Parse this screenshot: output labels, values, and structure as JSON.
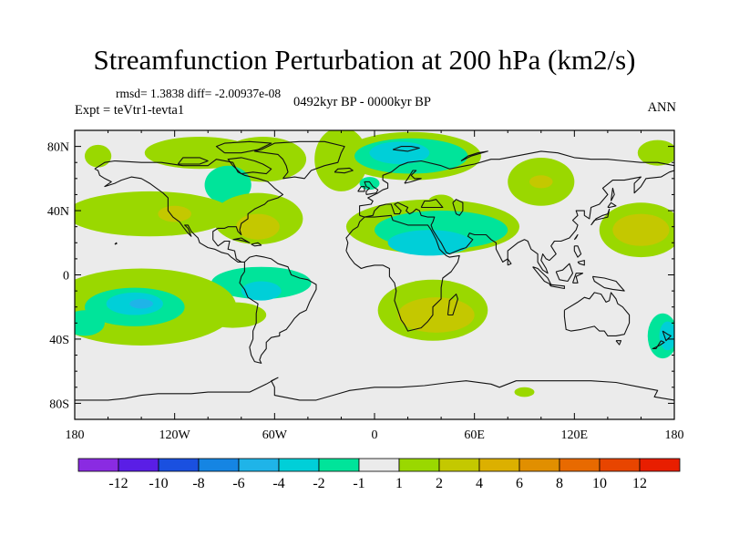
{
  "title": "Streamfunction Perturbation at 200 hPa (km2/s)",
  "stats": {
    "rmsd_text": "rmsd= 1.3838 diff= -2.00937e-08"
  },
  "experiment": "Expt = teVtr1-tevta1",
  "period": "0492kyr BP - 0000kyr BP",
  "season": "ANN",
  "map": {
    "projection": "cylindrical-equidistant",
    "lon_range": [
      -180,
      180
    ],
    "lat_range": [
      -90,
      90
    ],
    "lat_ticks": [
      {
        "value": 80,
        "label": "80N"
      },
      {
        "value": 40,
        "label": "40N"
      },
      {
        "value": 0,
        "label": "0"
      },
      {
        "value": -40,
        "label": "40S"
      },
      {
        "value": -80,
        "label": "80S"
      }
    ],
    "lon_ticks": [
      {
        "value": -180,
        "label": "180"
      },
      {
        "value": -120,
        "label": "120W"
      },
      {
        "value": -60,
        "label": "60W"
      },
      {
        "value": 0,
        "label": "0"
      },
      {
        "value": 60,
        "label": "60E"
      },
      {
        "value": 120,
        "label": "120E"
      },
      {
        "value": 180,
        "label": "180"
      }
    ],
    "background_color": "#ebebeb",
    "level_colors": {
      "neg1": "#00e49a",
      "neg2": "#00cfd8",
      "neg3": "#1fb4e8",
      "pos1": "#9ad800",
      "pos2": "#c4c800",
      "pos3": "#dcb000"
    },
    "anomaly_regions": [
      {
        "lon": -166,
        "lat": 74,
        "rlon": 8,
        "rlat": 7,
        "sign": 1,
        "level": 1
      },
      {
        "lon": -105,
        "lat": 76,
        "rlon": 33,
        "rlat": 10,
        "sign": 1,
        "level": 1
      },
      {
        "lon": -67,
        "lat": 72,
        "rlon": 26,
        "rlat": 14,
        "sign": 1,
        "level": 1
      },
      {
        "lon": -88,
        "lat": 56,
        "rlon": 14,
        "rlat": 12,
        "sign": -1,
        "level": 1
      },
      {
        "lon": -135,
        "lat": 38,
        "rlon": 50,
        "rlat": 14,
        "sign": 1,
        "level": 1
      },
      {
        "lon": -70,
        "lat": 35,
        "rlon": 27,
        "rlat": 16,
        "sign": 1,
        "level": 1
      },
      {
        "lon": -120,
        "lat": 38,
        "rlon": 10,
        "rlat": 5,
        "sign": 1,
        "level": 2
      },
      {
        "lon": -70,
        "lat": 30,
        "rlon": 13,
        "rlat": 8,
        "sign": 1,
        "level": 2
      },
      {
        "lon": -68,
        "lat": -5,
        "rlon": 30,
        "rlat": 10,
        "sign": -1,
        "level": 1
      },
      {
        "lon": -68,
        "lat": -10,
        "rlon": 12,
        "rlat": 6,
        "sign": -1,
        "level": 2
      },
      {
        "lon": -85,
        "lat": -25,
        "rlon": 20,
        "rlat": 8,
        "sign": 1,
        "level": 1
      },
      {
        "lon": -140,
        "lat": -20,
        "rlon": 57,
        "rlat": 24,
        "sign": 1,
        "level": 1
      },
      {
        "lon": -144,
        "lat": -20,
        "rlon": 30,
        "rlat": 12,
        "sign": -1,
        "level": 1
      },
      {
        "lon": -144,
        "lat": -18,
        "rlon": 17,
        "rlat": 7,
        "sign": -1,
        "level": 2
      },
      {
        "lon": -140,
        "lat": -18,
        "rlon": 7,
        "rlat": 3,
        "sign": -1,
        "level": 3
      },
      {
        "lon": -174,
        "lat": -30,
        "rlon": 12,
        "rlat": 8,
        "sign": -1,
        "level": 1
      },
      {
        "lon": -20,
        "lat": 72,
        "rlon": 16,
        "rlat": 20,
        "sign": 1,
        "level": 1
      },
      {
        "lon": 22,
        "lat": 74,
        "rlon": 42,
        "rlat": 15,
        "sign": 1,
        "level": 1
      },
      {
        "lon": 22,
        "lat": 74,
        "rlon": 34,
        "rlat": 11,
        "sign": -1,
        "level": 1
      },
      {
        "lon": 15,
        "lat": 76,
        "rlon": 18,
        "rlat": 7,
        "sign": -1,
        "level": 2
      },
      {
        "lon": 35,
        "lat": 30,
        "rlon": 52,
        "rlat": 17,
        "sign": 1,
        "level": 1
      },
      {
        "lon": 40,
        "lat": 28,
        "rlon": 40,
        "rlat": 12,
        "sign": -1,
        "level": 1
      },
      {
        "lon": 33,
        "lat": 20,
        "rlon": 25,
        "rlat": 8,
        "sign": -1,
        "level": 2
      },
      {
        "lon": -3,
        "lat": 57,
        "rlon": 6,
        "rlat": 4,
        "sign": -1,
        "level": 1
      },
      {
        "lon": 40,
        "lat": 45,
        "rlon": 8,
        "rlat": 5,
        "sign": 1,
        "level": 1
      },
      {
        "lon": 35,
        "lat": -22,
        "rlon": 33,
        "rlat": 19,
        "sign": 1,
        "level": 1
      },
      {
        "lon": 37,
        "lat": -25,
        "rlon": 23,
        "rlat": 11,
        "sign": 1,
        "level": 2
      },
      {
        "lon": 100,
        "lat": 58,
        "rlon": 20,
        "rlat": 15,
        "sign": 1,
        "level": 1
      },
      {
        "lon": 100,
        "lat": 58,
        "rlon": 7,
        "rlat": 4,
        "sign": 1,
        "level": 2
      },
      {
        "lon": 160,
        "lat": 28,
        "rlon": 25,
        "rlat": 17,
        "sign": 1,
        "level": 1
      },
      {
        "lon": 160,
        "lat": 28,
        "rlon": 17,
        "rlat": 10,
        "sign": 1,
        "level": 2
      },
      {
        "lon": 170,
        "lat": 76,
        "rlon": 12,
        "rlat": 8,
        "sign": 1,
        "level": 1
      },
      {
        "lon": 173,
        "lat": -38,
        "rlon": 9,
        "rlat": 14,
        "sign": -1,
        "level": 1
      },
      {
        "lon": 176,
        "lat": -38,
        "rlon": 5,
        "rlat": 9,
        "sign": -1,
        "level": 2
      },
      {
        "lon": 90,
        "lat": -73,
        "rlon": 6,
        "rlat": 3,
        "sign": 1,
        "level": 1
      }
    ]
  },
  "colorbar": {
    "colors": [
      "#8a2be2",
      "#5a1ee6",
      "#1a50e0",
      "#1585e3",
      "#1fb4e8",
      "#00cfd8",
      "#00e49a",
      "#ebebeb",
      "#9ad800",
      "#c4c800",
      "#dcb000",
      "#e18f00",
      "#e86a00",
      "#e84500",
      "#e81e00"
    ],
    "labels": [
      "-12",
      "-10",
      "-8",
      "-6",
      "-4",
      "-2",
      "-1",
      "1",
      "2",
      "4",
      "6",
      "8",
      "10",
      "12"
    ]
  }
}
